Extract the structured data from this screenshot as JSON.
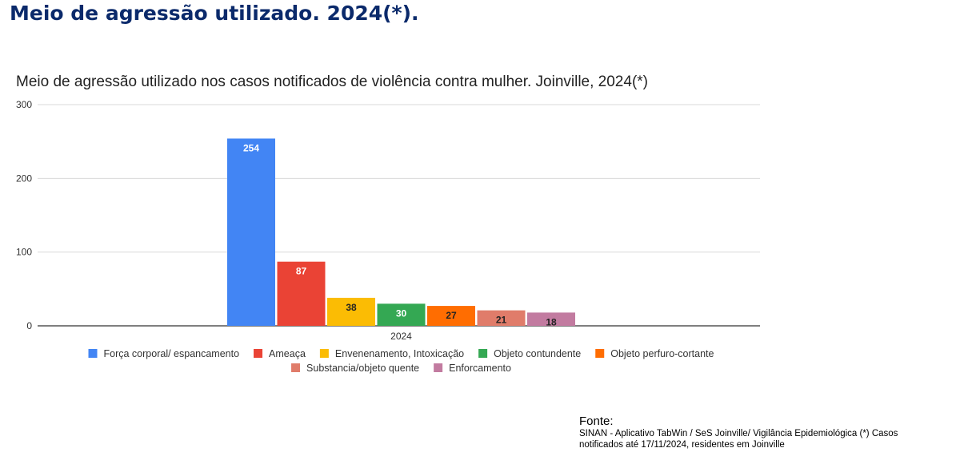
{
  "header": {
    "title": "Meio de agressão utilizado. 2024(*)."
  },
  "chart_data": {
    "type": "bar",
    "title": "Meio de agressão utilizado nos casos notificados de violência contra mulher. Joinville, 2024(*)",
    "categories": [
      "2024"
    ],
    "ylim": [
      0,
      300
    ],
    "yticks": [
      0,
      100,
      200,
      300
    ],
    "grid": true,
    "legend_position": "bottom",
    "series": [
      {
        "name": "Força corporal/ espancamento",
        "values": [
          254
        ],
        "color": "#4285f4",
        "label_color": "#ffffff"
      },
      {
        "name": "Ameaça",
        "values": [
          87
        ],
        "color": "#ea4335",
        "label_color": "#ffffff"
      },
      {
        "name": "Envenenamento, Intoxicação",
        "values": [
          38
        ],
        "color": "#fbbc04",
        "label_color": "#222222"
      },
      {
        "name": "Objeto contundente",
        "values": [
          30
        ],
        "color": "#34a853",
        "label_color": "#ffffff"
      },
      {
        "name": "Objeto perfuro-cortante",
        "values": [
          27
        ],
        "color": "#ff6d01",
        "label_color": "#222222"
      },
      {
        "name": "Substancia/objeto quente",
        "values": [
          21
        ],
        "color": "#e07c6a",
        "label_color": "#222222"
      },
      {
        "name": "Enforcamento",
        "values": [
          18
        ],
        "color": "#c27ba0",
        "label_color": "#222222"
      }
    ]
  },
  "source": {
    "label": "Fonte:",
    "line1": "SINAN - Aplicativo TabWin / SeS Joinville/ Vigilância Epidemiológica (*) Casos",
    "line2": "notificados até 17/11/2024, residentes em Joinville"
  }
}
